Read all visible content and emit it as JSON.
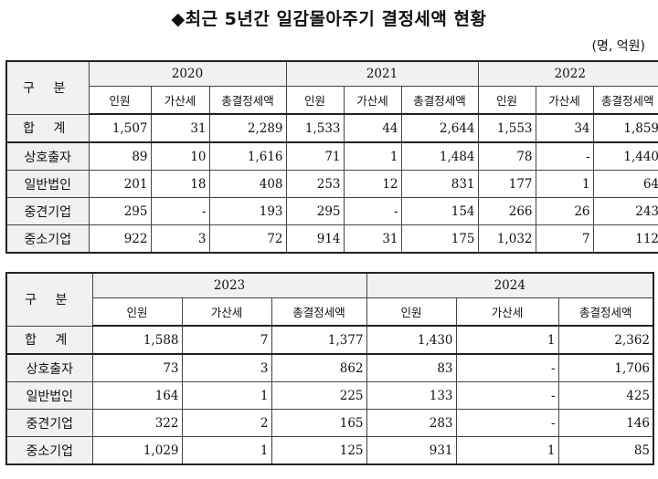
{
  "title": "◆최근 5년간 일감몰아주기 결정세액 현황",
  "unit": "(명, 억원)",
  "gubun": "구 분",
  "sub_headers": [
    "인원",
    "가산세",
    "총결정세액"
  ],
  "row_labels": [
    "합 계",
    "상호출자",
    "일반법인",
    "중견기업",
    "중소기업"
  ],
  "table1": {
    "years": [
      "2020",
      "2021",
      "2022"
    ],
    "rows": [
      [
        "1,507",
        "31",
        "2,289",
        "1,533",
        "44",
        "2,644",
        "1,553",
        "34",
        "1,859"
      ],
      [
        "89",
        "10",
        "1,616",
        "71",
        "1",
        "1,484",
        "78",
        "-",
        "1,440"
      ],
      [
        "201",
        "18",
        "408",
        "253",
        "12",
        "831",
        "177",
        "1",
        "64"
      ],
      [
        "295",
        "-",
        "193",
        "295",
        "-",
        "154",
        "266",
        "26",
        "243"
      ],
      [
        "922",
        "3",
        "72",
        "914",
        "31",
        "175",
        "1,032",
        "7",
        "112"
      ]
    ]
  },
  "table2": {
    "years": [
      "2023",
      "2024"
    ],
    "rows": [
      [
        "1,588",
        "7",
        "1,377",
        "1,430",
        "1",
        "2,362"
      ],
      [
        "73",
        "3",
        "862",
        "83",
        "-",
        "1,706"
      ],
      [
        "164",
        "1",
        "225",
        "133",
        "-",
        "425"
      ],
      [
        "322",
        "2",
        "165",
        "283",
        "-",
        "146"
      ],
      [
        "1,029",
        "1",
        "125",
        "931",
        "1",
        "85"
      ]
    ]
  }
}
